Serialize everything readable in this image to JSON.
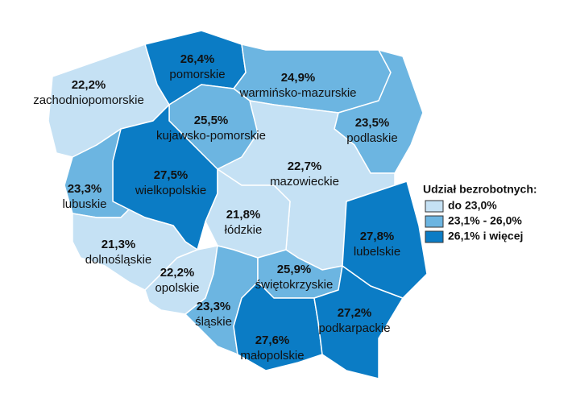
{
  "map": {
    "legend": {
      "title": "Udział bezrobotnych:",
      "items": [
        {
          "label": "do 23,0%",
          "color": "#c5e1f4"
        },
        {
          "label": "23,1% - 26,0%",
          "color": "#6cb5e1"
        },
        {
          "label": "26,1% i więcej",
          "color": "#0b7cc5"
        }
      ]
    },
    "regions": [
      {
        "name": "zachodniopomorskie",
        "value": 22.2,
        "value_label": "22,2%",
        "color": "#c5e1f4"
      },
      {
        "name": "pomorskie",
        "value": 26.4,
        "value_label": "26,4%",
        "color": "#0b7cc5"
      },
      {
        "name": "warmińsko-mazurskie",
        "value": 24.9,
        "value_label": "24,9%",
        "color": "#6cb5e1"
      },
      {
        "name": "podlaskie",
        "value": 23.5,
        "value_label": "23,5%",
        "color": "#6cb5e1"
      },
      {
        "name": "kujawsko-pomorskie",
        "value": 25.5,
        "value_label": "25,5%",
        "color": "#6cb5e1"
      },
      {
        "name": "wielkopolskie",
        "value": 27.5,
        "value_label": "27,5%",
        "color": "#0b7cc5"
      },
      {
        "name": "lubuskie",
        "value": 23.3,
        "value_label": "23,3%",
        "color": "#6cb5e1"
      },
      {
        "name": "mazowieckie",
        "value": 22.7,
        "value_label": "22,7%",
        "color": "#c5e1f4"
      },
      {
        "name": "łódzkie",
        "value": 21.8,
        "value_label": "21,8%",
        "color": "#c5e1f4"
      },
      {
        "name": "dolnośląskie",
        "value": 21.3,
        "value_label": "21,3%",
        "color": "#c5e1f4"
      },
      {
        "name": "opolskie",
        "value": 22.2,
        "value_label": "22,2%",
        "color": "#c5e1f4"
      },
      {
        "name": "śląskie",
        "value": 23.3,
        "value_label": "23,3%",
        "color": "#6cb5e1"
      },
      {
        "name": "świętokrzyskie",
        "value": 25.9,
        "value_label": "25,9%",
        "color": "#6cb5e1"
      },
      {
        "name": "małopolskie",
        "value": 27.6,
        "value_label": "27,6%",
        "color": "#0b7cc5"
      },
      {
        "name": "podkarpackie",
        "value": 27.2,
        "value_label": "27,2%",
        "color": "#0b7cc5"
      },
      {
        "name": "lubelskie",
        "value": 27.8,
        "value_label": "27,8%",
        "color": "#0b7cc5"
      }
    ]
  }
}
